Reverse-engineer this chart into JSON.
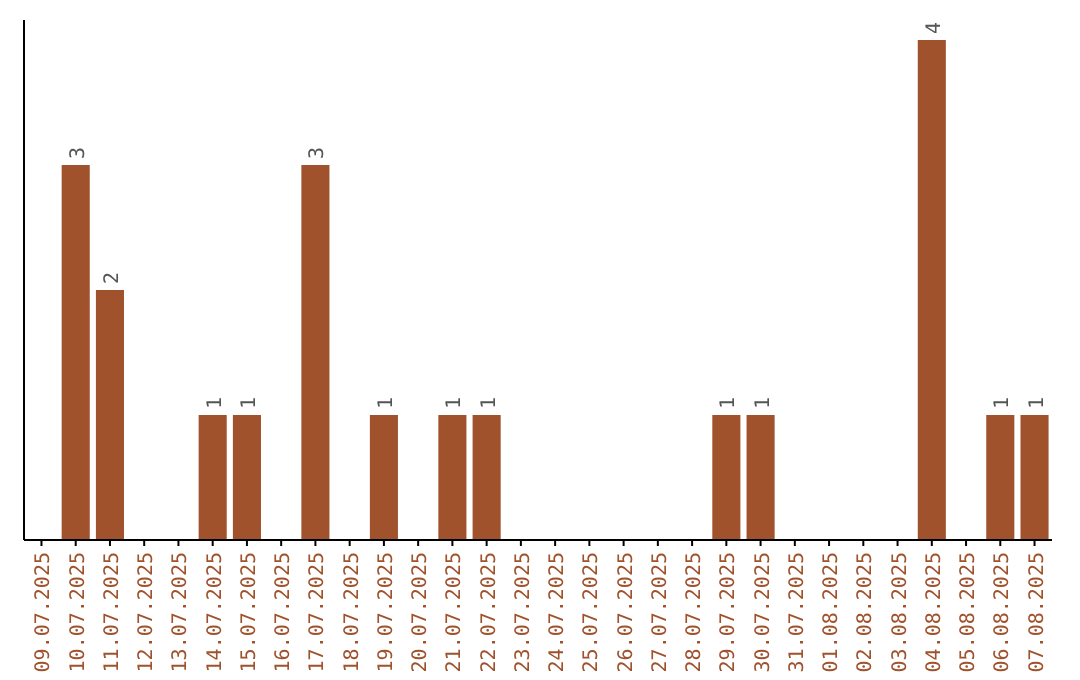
{
  "chart_data": {
    "type": "bar",
    "categories": [
      "09.07.2025",
      "10.07.2025",
      "11.07.2025",
      "12.07.2025",
      "13.07.2025",
      "14.07.2025",
      "15.07.2025",
      "16.07.2025",
      "17.07.2025",
      "18.07.2025",
      "19.07.2025",
      "20.07.2025",
      "21.07.2025",
      "22.07.2025",
      "23.07.2025",
      "24.07.2025",
      "25.07.2025",
      "26.07.2025",
      "27.07.2025",
      "28.07.2025",
      "29.07.2025",
      "30.07.2025",
      "31.07.2025",
      "01.08.2025",
      "02.08.2025",
      "03.08.2025",
      "04.08.2025",
      "05.08.2025",
      "06.08.2025",
      "07.08.2025"
    ],
    "values": [
      0,
      3,
      2,
      0,
      0,
      1,
      1,
      0,
      3,
      0,
      1,
      0,
      1,
      1,
      0,
      0,
      0,
      0,
      0,
      0,
      1,
      1,
      0,
      0,
      0,
      0,
      4,
      0,
      1,
      1
    ],
    "value_labels": [
      null,
      "3",
      "2",
      null,
      null,
      "1",
      "1",
      null,
      "3",
      null,
      "1",
      null,
      "1",
      "1",
      null,
      null,
      null,
      null,
      null,
      null,
      "1",
      "1",
      null,
      null,
      null,
      null,
      "4",
      null,
      "1",
      "1"
    ],
    "color": "#a0522d"
  }
}
